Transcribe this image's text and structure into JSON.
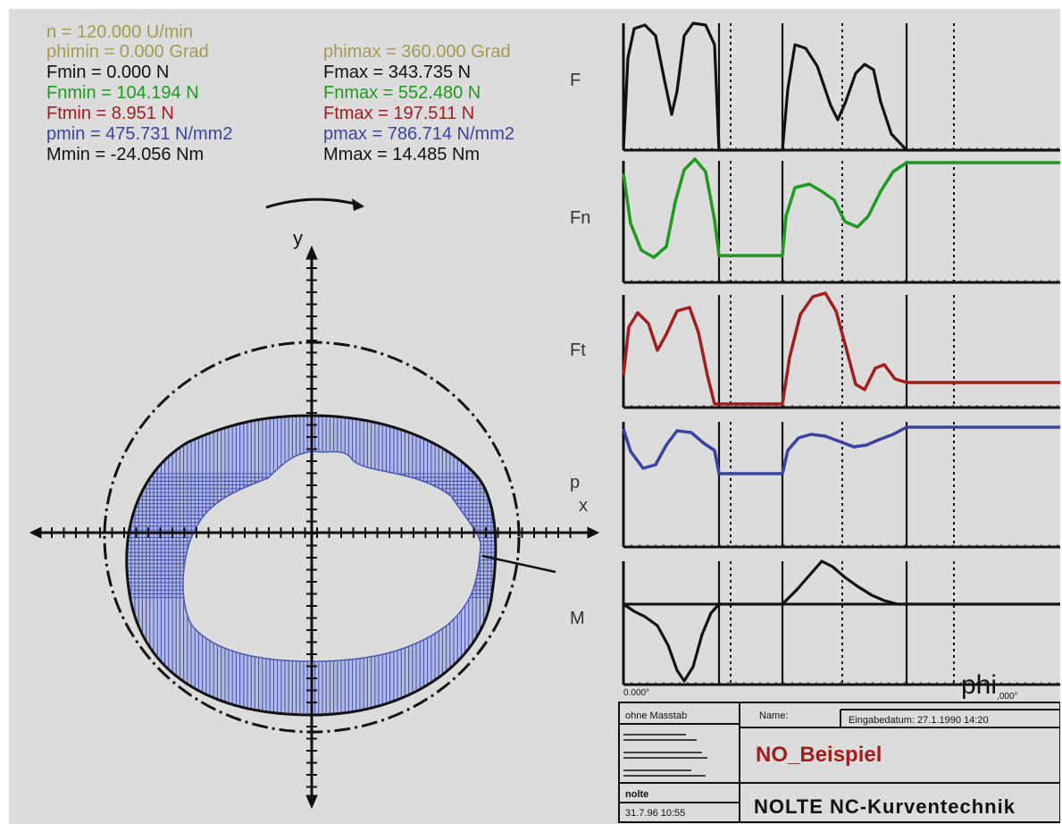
{
  "parameters": {
    "speed": "n = 120.000 U/min",
    "phimin": "phimin = 0.000 Grad",
    "phimax": "phimax = 360.000 Grad",
    "fmin": "Fmin = 0.000 N",
    "fmax": "Fmax = 343.735 N",
    "fnmin": "Fnmin = 104.194 N",
    "fnmax": "Fnmax = 552.480 N",
    "ftmin": "Ftmin = 8.951 N",
    "ftmax": "Ftmax = 197.511 N",
    "pmin": "pmin = 475.731 N/mm2",
    "pmax": "pmax = 786.714 N/mm2",
    "mmin": "Mmin = -24.056 Nm",
    "mmax": "Mmax = 14.485 Nm"
  },
  "colors": {
    "background": "#dcdcdc",
    "olive": "#a39a50",
    "black": "#111111",
    "green": "#1e9a1e",
    "red": "#a01e1e",
    "blue": "#3a44a0",
    "hatch": "#4a58b4"
  },
  "cam": {
    "axis_y_label": "y",
    "axis_x_label": "x"
  },
  "graphs": {
    "labels": {
      "f": "F",
      "fn": "Fn",
      "ft": "Ft",
      "p": "p",
      "m": "M"
    },
    "x_start_label": "0.000°",
    "phi_label": "phi",
    "phi_sub": ",000°"
  },
  "title_block": {
    "scale": "ohne Masstab",
    "name_label": "Name:",
    "date_label": "Eingabedatum: 27.1.1990 14:20",
    "drawing_name": "NO_Beispiel",
    "company": "NOLTE NC-Kurventechnik",
    "author": "nolte",
    "timestamp": "31.7.96 10:55"
  }
}
